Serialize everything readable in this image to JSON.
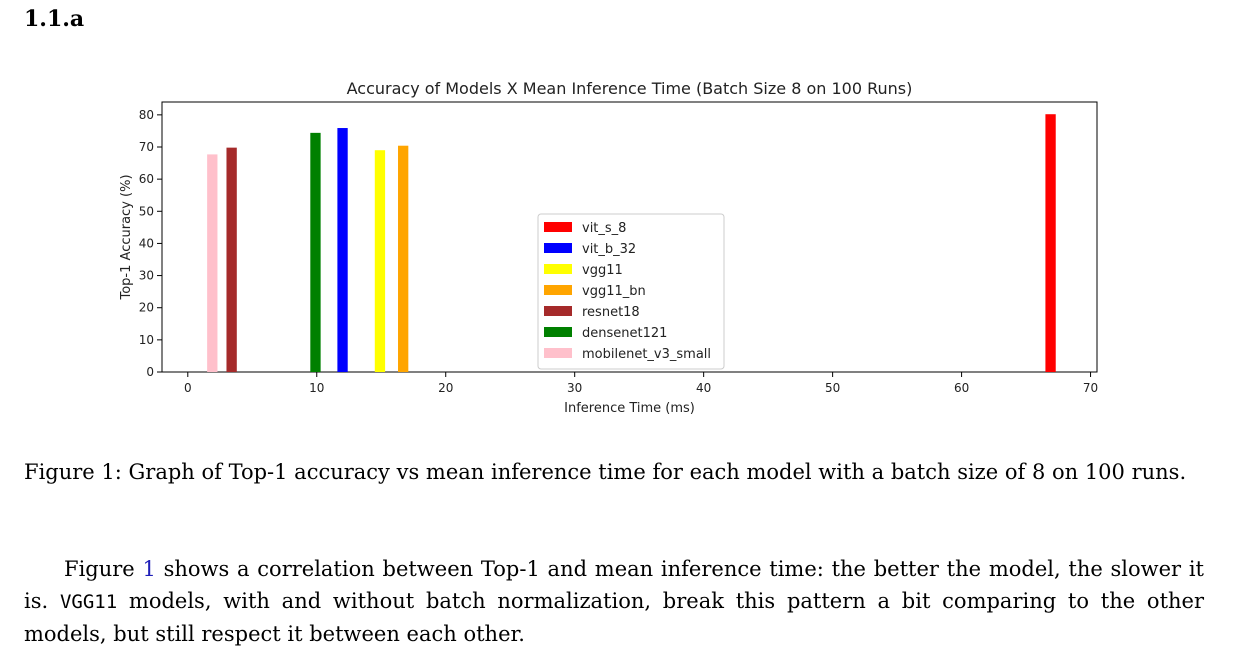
{
  "section": {
    "number": "1.1.a"
  },
  "figure": {
    "caption": "Figure 1: Graph of Top-1 accuracy vs mean inference time for each model with a batch size of 8 on 100 runs."
  },
  "paragraph": {
    "prefix": "Figure ",
    "ref": "1",
    "text1": " shows a correlation between Top-1 and mean inference time: the better the model, the slower it is. ",
    "code": "VGG11",
    "text2": " models, with and without batch normalization, break this pattern a bit comparing to the other models, but still respect it between each other."
  },
  "chart_data": {
    "type": "bar",
    "title": "Accuracy of Models X Mean Inference Time (Batch Size 8 on 100 Runs)",
    "xlabel": "Inference Time (ms)",
    "ylabel": "Top-1 Accuracy (%)",
    "xlim": [
      -2,
      70.5
    ],
    "ylim": [
      0,
      84
    ],
    "xticks": [
      0,
      10,
      20,
      30,
      40,
      50,
      60,
      70
    ],
    "yticks": [
      0,
      10,
      20,
      30,
      40,
      50,
      60,
      70,
      80
    ],
    "bar_width": 0.8,
    "grid": false,
    "legend_position": "center",
    "series": [
      {
        "name": "vit_s_8",
        "x": 66.9,
        "value": 80.2,
        "color": "#ff0000"
      },
      {
        "name": "vit_b_32",
        "x": 12.0,
        "value": 75.9,
        "color": "#0000ff"
      },
      {
        "name": "vgg11",
        "x": 14.9,
        "value": 69.0,
        "color": "#ffff00"
      },
      {
        "name": "vgg11_bn",
        "x": 16.7,
        "value": 70.4,
        "color": "#ffa500"
      },
      {
        "name": "resnet18",
        "x": 3.4,
        "value": 69.8,
        "color": "#a52a2a"
      },
      {
        "name": "densenet121",
        "x": 9.9,
        "value": 74.4,
        "color": "#008000"
      },
      {
        "name": "mobilenet_v3_small",
        "x": 1.9,
        "value": 67.7,
        "color": "#ffc0cb"
      }
    ]
  }
}
